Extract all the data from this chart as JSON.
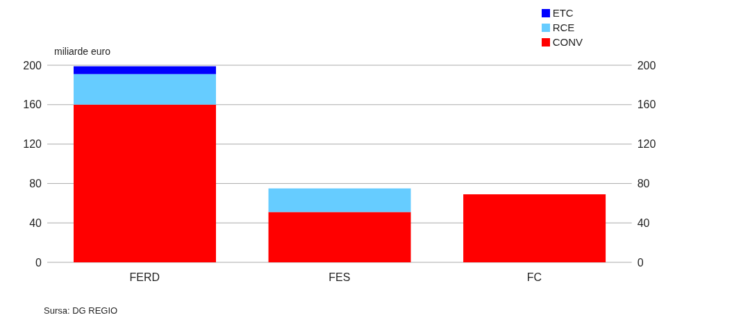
{
  "chart_data": {
    "type": "bar",
    "stacked": true,
    "ylabel": "miliarde euro",
    "categories": [
      "FERD",
      "FES",
      "FC"
    ],
    "series": [
      {
        "name": "CONV",
        "color": "#ff0000",
        "values": [
          160,
          51,
          69
        ]
      },
      {
        "name": "RCE",
        "color": "#66ccff",
        "values": [
          31,
          24,
          0
        ]
      },
      {
        "name": "ETC",
        "color": "#0000ff",
        "values": [
          8,
          0,
          0
        ]
      }
    ],
    "ylim": [
      0,
      200
    ],
    "yticks": [
      0,
      40,
      80,
      120,
      160,
      200
    ],
    "y2lim": [
      0,
      200
    ],
    "y2ticks": [
      0,
      40,
      80,
      120,
      160,
      200
    ],
    "grid": "y",
    "legend": "top right",
    "annotations": [
      "Sursa: DG REGIO"
    ]
  }
}
